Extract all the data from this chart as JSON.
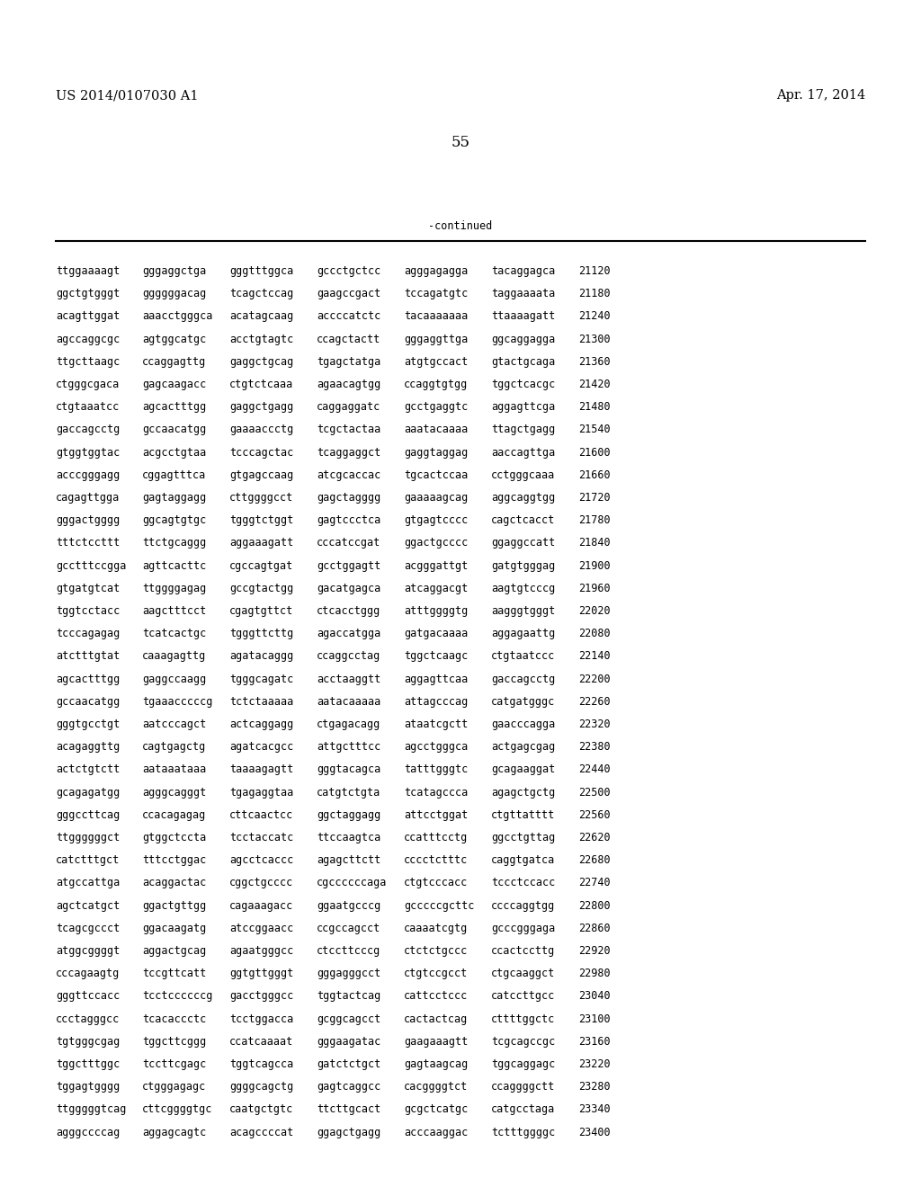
{
  "left_header": "US 2014/0107030 A1",
  "right_header": "Apr. 17, 2014",
  "page_number": "55",
  "continued_label": "-continued",
  "background_color": "#ffffff",
  "text_color": "#000000",
  "font_size_header": 10.5,
  "font_size_body": 8.5,
  "font_size_page": 12,
  "sequences": [
    [
      "ttggaaaagt",
      "gggaggctga",
      "gggtttggca",
      "gccctgctcc",
      "agggagagga",
      "tacaggagca",
      "21120"
    ],
    [
      "ggctgtgggt",
      "ggggggacag",
      "tcagctccag",
      "gaagccgact",
      "tccagatgtc",
      "taggaaaata",
      "21180"
    ],
    [
      "acagttggat",
      "aaacctgggca",
      "acatagcaag",
      "accccatctc",
      "tacaaaaaaa",
      "ttaaaagatt",
      "21240"
    ],
    [
      "agccaggcgc",
      "agtggcatgc",
      "acctgtagtc",
      "ccagctactt",
      "gggaggttga",
      "ggcaggagga",
      "21300"
    ],
    [
      "ttgcttaagc",
      "ccaggagttg",
      "gaggctgcag",
      "tgagctatga",
      "atgtgccact",
      "gtactgcaga",
      "21360"
    ],
    [
      "ctgggcgaca",
      "gagcaagacc",
      "ctgtctcaaa",
      "agaacagtgg",
      "ccaggtgtgg",
      "tggctcacgc",
      "21420"
    ],
    [
      "ctgtaaatcc",
      "agcactttgg",
      "gaggctgagg",
      "caggaggatc",
      "gcctgaggtc",
      "aggagttcga",
      "21480"
    ],
    [
      "gaccagcctg",
      "gccaacatgg",
      "gaaaaccctg",
      "tcgctactaa",
      "aaatacaaaa",
      "ttagctgagg",
      "21540"
    ],
    [
      "gtggtggtac",
      "acgcctgtaa",
      "tcccagctac",
      "tcaggaggct",
      "gaggtaggag",
      "aaccagttga",
      "21600"
    ],
    [
      "acccgggagg",
      "cggagtttca",
      "gtgagccaag",
      "atcgcaccac",
      "tgcactccaa",
      "cctgggcaaa",
      "21660"
    ],
    [
      "cagagttgga",
      "gagtaggagg",
      "cttggggcct",
      "gagctagggg",
      "gaaaaagcag",
      "aggcaggtgg",
      "21720"
    ],
    [
      "gggactgggg",
      "ggcagtgtgc",
      "tgggtctggt",
      "gagtccctca",
      "gtgagtcccc",
      "cagctcacct",
      "21780"
    ],
    [
      "tttctccttt",
      "ttctgcaggg",
      "aggaaagatt",
      "cccatccgat",
      "ggactgcccc",
      "ggaggccatt",
      "21840"
    ],
    [
      "gcctttccgga",
      "agttcacttc",
      "cgccagtgat",
      "gcctggagtt",
      "acgggattgt",
      "gatgtgggag",
      "21900"
    ],
    [
      "gtgatgtcat",
      "ttggggagag",
      "gccgtactgg",
      "gacatgagca",
      "atcaggacgt",
      "aagtgtcccg",
      "21960"
    ],
    [
      "tggtcctacc",
      "aagctttcct",
      "cgagtgttct",
      "ctcacctggg",
      "atttggggtg",
      "aagggtgggt",
      "22020"
    ],
    [
      "tcccagagag",
      "tcatcactgc",
      "tgggttcttg",
      "agaccatgga",
      "gatgacaaaa",
      "aggagaattg",
      "22080"
    ],
    [
      "atctttgtat",
      "caaagagttg",
      "agatacaggg",
      "ccaggcctag",
      "tggctcaagc",
      "ctgtaatccc",
      "22140"
    ],
    [
      "agcactttgg",
      "gaggccaagg",
      "tgggcagatc",
      "acctaaggtt",
      "aggagttcaa",
      "gaccagcctg",
      "22200"
    ],
    [
      "gccaacatgg",
      "tgaaacccccg",
      "tctctaaaaa",
      "aatacaaaaa",
      "attagcccag",
      "catgatgggc",
      "22260"
    ],
    [
      "gggtgcctgt",
      "aatcccagct",
      "actcaggagg",
      "ctgagacagg",
      "ataatcgctt",
      "gaacccagga",
      "22320"
    ],
    [
      "acagaggttg",
      "cagtgagctg",
      "agatcacgcc",
      "attgctttcc",
      "agcctgggca",
      "actgagcgag",
      "22380"
    ],
    [
      "actctgtctt",
      "aataaataaa",
      "taaaagagtt",
      "gggtacagca",
      "tatttgggtc",
      "gcagaaggat",
      "22440"
    ],
    [
      "gcagagatgg",
      "agggcagggt",
      "tgagaggtaa",
      "catgtctgta",
      "tcatagccca",
      "agagctgctg",
      "22500"
    ],
    [
      "gggccttcag",
      "ccacagagag",
      "cttcaactcc",
      "ggctaggagg",
      "attcctggat",
      "ctgttatttt",
      "22560"
    ],
    [
      "ttggggggct",
      "gtggctccta",
      "tcctaccatc",
      "ttccaagtca",
      "ccatttcctg",
      "ggcctgttag",
      "22620"
    ],
    [
      "catctttgct",
      "tttcctggac",
      "agcctcaccc",
      "agagcttctt",
      "cccctctttc",
      "caggtgatca",
      "22680"
    ],
    [
      "atgccattga",
      "acaggactac",
      "cggctgcccc",
      "cgccccccaga",
      "ctgtcccacc",
      "tccctccacc",
      "22740"
    ],
    [
      "agctcatgct",
      "ggactgttgg",
      "cagaaagacc",
      "ggaatgcccg",
      "gcccccgcttc",
      "ccccaggtgg",
      "22800"
    ],
    [
      "tcagcgccct",
      "ggacaagatg",
      "atccggaacc",
      "ccgccagcct",
      "caaaatcgtg",
      "gcccgggaga",
      "22860"
    ],
    [
      "atggcggggt",
      "aggactgcag",
      "agaatgggcc",
      "ctccttcccg",
      "ctctctgccc",
      "ccactccttg",
      "22920"
    ],
    [
      "cccagaagtg",
      "tccgttcatt",
      "ggtgttgggt",
      "gggagggcct",
      "ctgtccgcct",
      "ctgcaaggct",
      "22980"
    ],
    [
      "gggttccacc",
      "tcctccccccg",
      "gacctgggcc",
      "tggtactcag",
      "cattcctccc",
      "catccttgcc",
      "23040"
    ],
    [
      "ccctagggcc",
      "tcacaccctc",
      "tcctggacca",
      "gcggcagcct",
      "cactactcag",
      "cttttggctc",
      "23100"
    ],
    [
      "tgtgggcgag",
      "tggcttcggg",
      "ccatcaaaat",
      "gggaagatac",
      "gaagaaagtt",
      "tcgcagccgc",
      "23160"
    ],
    [
      "tggctttggc",
      "tccttcgagc",
      "tggtcagcca",
      "gatctctgct",
      "gagtaagcag",
      "tggcaggagc",
      "23220"
    ],
    [
      "tggagtgggg",
      "ctgggagagc",
      "ggggcagctg",
      "gagtcaggcc",
      "cacggggtct",
      "ccaggggctt",
      "23280"
    ],
    [
      "ttgggggtcag",
      "cttcggggtgc",
      "caatgctgtc",
      "ttcttgcact",
      "gcgctcatgc",
      "catgcctaga",
      "23340"
    ],
    [
      "agggccccag",
      "aggagcagtc",
      "acagccccat",
      "ggagctgagg",
      "acccaaggac",
      "tctttggggc",
      "23400"
    ]
  ]
}
